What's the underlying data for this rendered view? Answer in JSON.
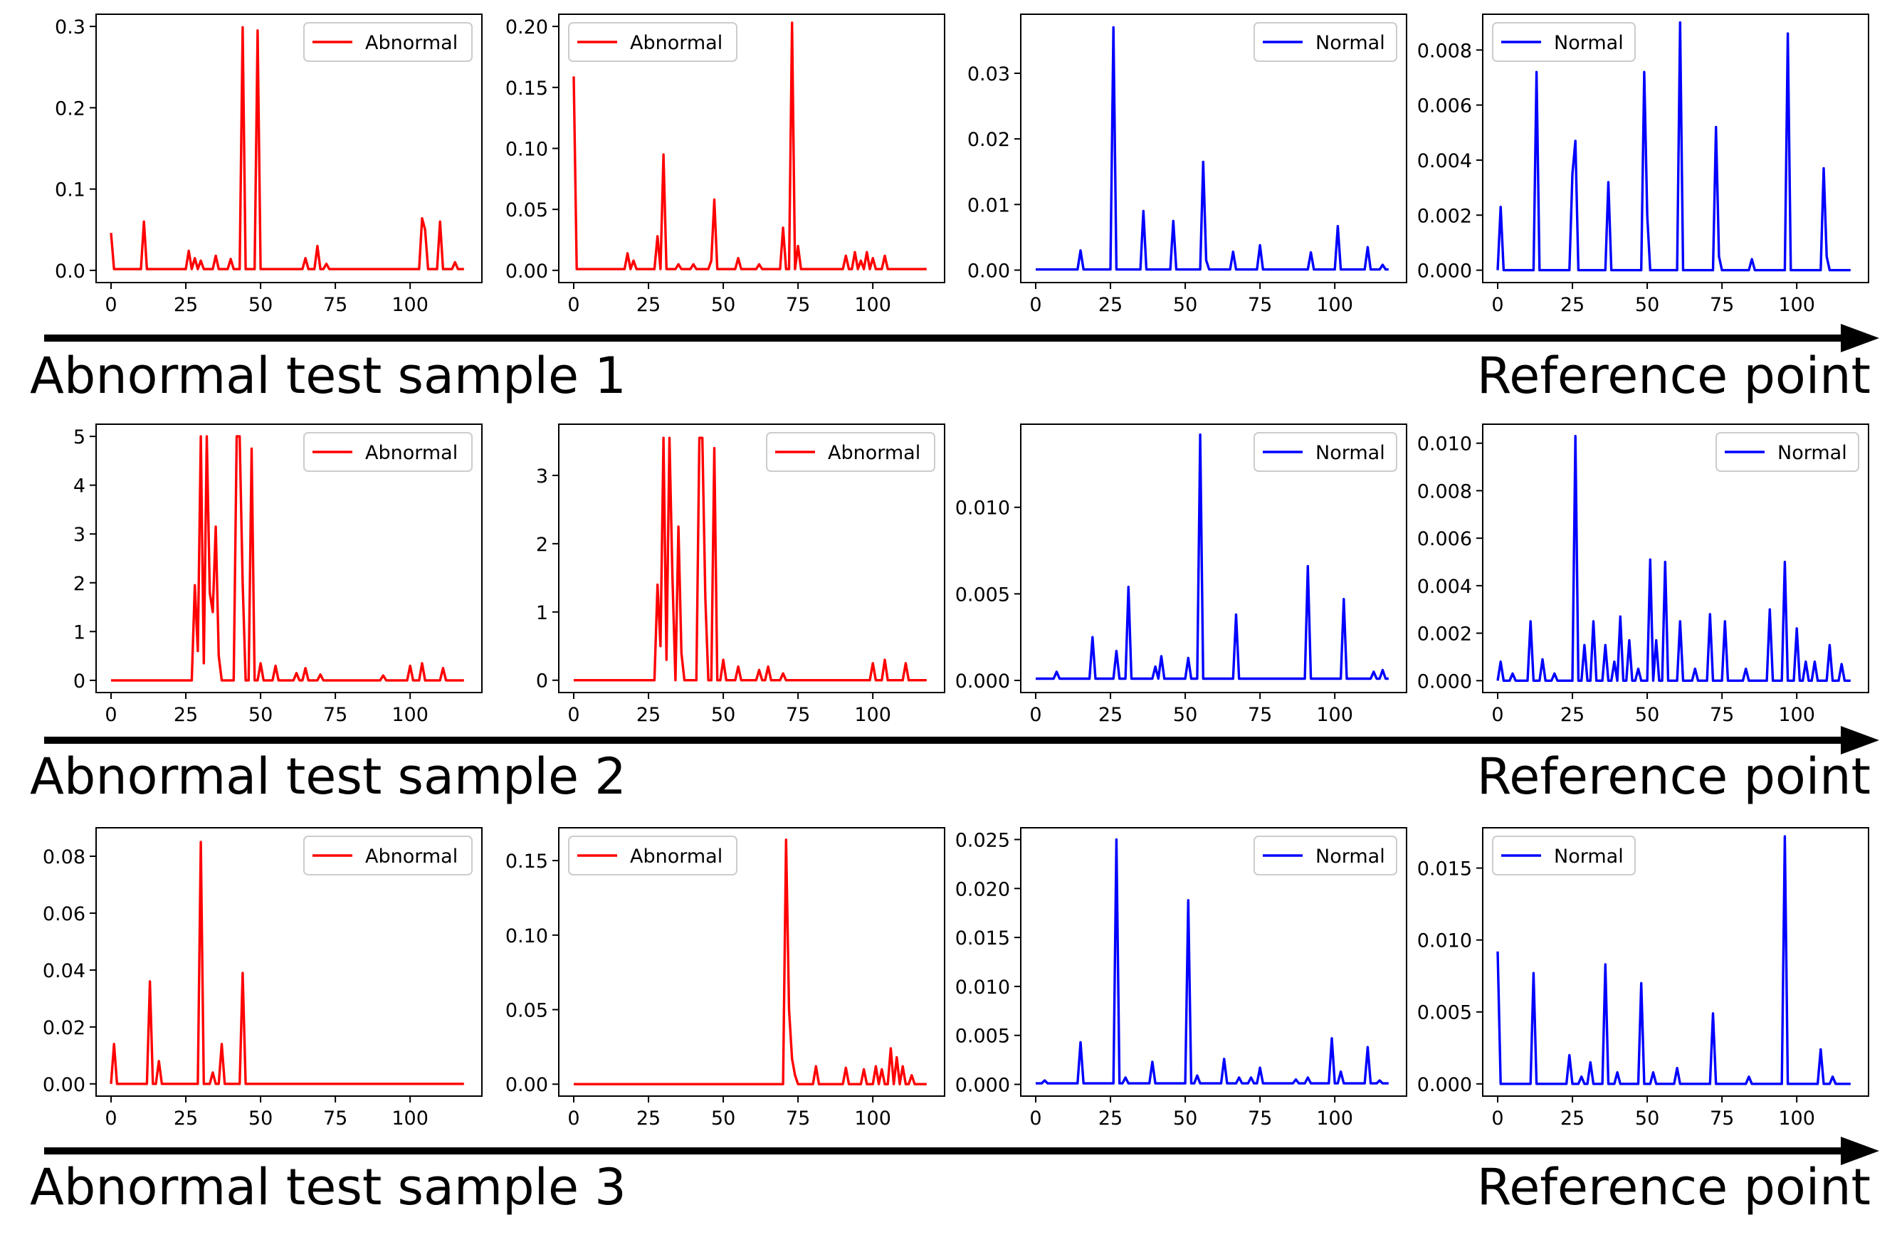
{
  "figure": {
    "rows": [
      {
        "left_label": "Abnormal test sample 1",
        "right_label": "Reference point"
      },
      {
        "left_label": "Abnormal test sample 2",
        "right_label": "Reference point"
      },
      {
        "left_label": "Abnormal test sample 3",
        "right_label": "Reference point"
      }
    ],
    "colors": {
      "abnormal": "#ff0000",
      "normal": "#0000ff",
      "axes": "#000000",
      "arrow": "#000000"
    }
  },
  "chart_data": [
    {
      "type": "line",
      "legend": "Abnormal",
      "color": "#ff0000",
      "xlim": [
        -5,
        124
      ],
      "ylim": [
        -0.015,
        0.315
      ],
      "xticks": [
        0,
        25,
        50,
        75,
        100
      ],
      "yticks": [
        0.0,
        0.1,
        0.2,
        0.3
      ],
      "ytick_labels": [
        "0.0",
        "0.1",
        "0.2",
        "0.3"
      ],
      "legend_loc": "upper right",
      "n_points": 119,
      "baseline": 0.0015,
      "peaks": [
        [
          0,
          0.046
        ],
        [
          11,
          0.06
        ],
        [
          26,
          0.024
        ],
        [
          28,
          0.015
        ],
        [
          30,
          0.012
        ],
        [
          35,
          0.018
        ],
        [
          40,
          0.014
        ],
        [
          44,
          0.299
        ],
        [
          49,
          0.295
        ],
        [
          65,
          0.015
        ],
        [
          69,
          0.03
        ],
        [
          72,
          0.008
        ],
        [
          104,
          0.064
        ],
        [
          105,
          0.05
        ],
        [
          110,
          0.06
        ],
        [
          115,
          0.01
        ]
      ]
    },
    {
      "type": "line",
      "legend": "Abnormal",
      "color": "#ff0000",
      "xlim": [
        -5,
        124
      ],
      "ylim": [
        -0.01,
        0.21
      ],
      "xticks": [
        0,
        25,
        50,
        75,
        100
      ],
      "yticks": [
        0.0,
        0.05,
        0.1,
        0.15,
        0.2
      ],
      "ytick_labels": [
        "0.00",
        "0.05",
        "0.10",
        "0.15",
        "0.20"
      ],
      "legend_loc": "upper left",
      "n_points": 119,
      "baseline": 0.001,
      "peaks": [
        [
          0,
          0.159
        ],
        [
          18,
          0.014
        ],
        [
          20,
          0.008
        ],
        [
          28,
          0.028
        ],
        [
          30,
          0.095
        ],
        [
          35,
          0.005
        ],
        [
          40,
          0.005
        ],
        [
          46,
          0.008
        ],
        [
          47,
          0.058
        ],
        [
          55,
          0.01
        ],
        [
          62,
          0.005
        ],
        [
          70,
          0.035
        ],
        [
          73,
          0.203
        ],
        [
          75,
          0.02
        ],
        [
          91,
          0.012
        ],
        [
          94,
          0.015
        ],
        [
          96,
          0.008
        ],
        [
          98,
          0.015
        ],
        [
          100,
          0.01
        ],
        [
          104,
          0.012
        ]
      ]
    },
    {
      "type": "line",
      "legend": "Normal",
      "color": "#0000ff",
      "xlim": [
        -5,
        124
      ],
      "ylim": [
        -0.0019,
        0.039
      ],
      "xticks": [
        0,
        25,
        50,
        75,
        100
      ],
      "yticks": [
        0.0,
        0.01,
        0.02,
        0.03
      ],
      "ytick_labels": [
        "0.00",
        "0.01",
        "0.02",
        "0.03"
      ],
      "legend_loc": "upper right",
      "n_points": 119,
      "baseline": 0.0001,
      "peaks": [
        [
          15,
          0.003
        ],
        [
          26,
          0.037
        ],
        [
          36,
          0.009
        ],
        [
          46,
          0.0075
        ],
        [
          56,
          0.0165
        ],
        [
          57,
          0.0015
        ],
        [
          66,
          0.0028
        ],
        [
          75,
          0.0038
        ],
        [
          92,
          0.0027
        ],
        [
          101,
          0.0067
        ],
        [
          111,
          0.0035
        ],
        [
          116,
          0.0008
        ]
      ]
    },
    {
      "type": "line",
      "legend": "Normal",
      "color": "#0000ff",
      "xlim": [
        -5,
        124
      ],
      "ylim": [
        -0.00045,
        0.0093
      ],
      "xticks": [
        0,
        25,
        50,
        75,
        100
      ],
      "yticks": [
        0.0,
        0.002,
        0.004,
        0.006,
        0.008
      ],
      "ytick_labels": [
        "0.000",
        "0.002",
        "0.004",
        "0.006",
        "0.008"
      ],
      "legend_loc": "upper left",
      "n_points": 119,
      "baseline": 0.0,
      "peaks": [
        [
          1,
          0.0023
        ],
        [
          13,
          0.0072
        ],
        [
          25,
          0.0035
        ],
        [
          26,
          0.0047
        ],
        [
          37,
          0.0032
        ],
        [
          49,
          0.0072
        ],
        [
          50,
          0.002
        ],
        [
          61,
          0.009
        ],
        [
          73,
          0.0052
        ],
        [
          74,
          0.0005
        ],
        [
          85,
          0.0004
        ],
        [
          97,
          0.0086
        ],
        [
          109,
          0.0037
        ],
        [
          110,
          0.0005
        ]
      ]
    },
    {
      "type": "line",
      "legend": "Abnormal",
      "color": "#ff0000",
      "xlim": [
        -5,
        124
      ],
      "ylim": [
        -0.25,
        5.25
      ],
      "xticks": [
        0,
        25,
        50,
        75,
        100
      ],
      "yticks": [
        0,
        1,
        2,
        3,
        4,
        5
      ],
      "ytick_labels": [
        "0",
        "1",
        "2",
        "3",
        "4",
        "5"
      ],
      "legend_loc": "upper right",
      "n_points": 119,
      "baseline": 0.0,
      "peaks": [
        [
          28,
          1.95
        ],
        [
          29,
          0.6
        ],
        [
          30,
          5.0
        ],
        [
          31,
          0.35
        ],
        [
          32,
          5.0
        ],
        [
          33,
          1.8
        ],
        [
          34,
          1.4
        ],
        [
          35,
          3.15
        ],
        [
          36,
          0.5
        ],
        [
          42,
          5.0
        ],
        [
          43,
          5.0
        ],
        [
          44,
          2.0
        ],
        [
          47,
          4.75
        ],
        [
          50,
          0.35
        ],
        [
          55,
          0.3
        ],
        [
          62,
          0.15
        ],
        [
          65,
          0.25
        ],
        [
          70,
          0.12
        ],
        [
          91,
          0.1
        ],
        [
          100,
          0.3
        ],
        [
          104,
          0.35
        ],
        [
          111,
          0.25
        ]
      ]
    },
    {
      "type": "line",
      "legend": "Abnormal",
      "color": "#ff0000",
      "xlim": [
        -5,
        124
      ],
      "ylim": [
        -0.18,
        3.75
      ],
      "xticks": [
        0,
        25,
        50,
        75,
        100
      ],
      "yticks": [
        0,
        1,
        2,
        3
      ],
      "ytick_labels": [
        "0",
        "1",
        "2",
        "3"
      ],
      "legend_loc": "upper right",
      "n_points": 119,
      "baseline": 0.0,
      "peaks": [
        [
          28,
          1.4
        ],
        [
          29,
          0.5
        ],
        [
          30,
          3.55
        ],
        [
          31,
          0.3
        ],
        [
          32,
          3.55
        ],
        [
          33,
          1.5
        ],
        [
          35,
          2.25
        ],
        [
          36,
          0.4
        ],
        [
          42,
          3.55
        ],
        [
          43,
          3.55
        ],
        [
          44,
          1.2
        ],
        [
          47,
          3.4
        ],
        [
          50,
          0.3
        ],
        [
          55,
          0.2
        ],
        [
          62,
          0.15
        ],
        [
          65,
          0.2
        ],
        [
          70,
          0.1
        ],
        [
          100,
          0.25
        ],
        [
          104,
          0.3
        ],
        [
          111,
          0.25
        ]
      ]
    },
    {
      "type": "line",
      "legend": "Normal",
      "color": "#0000ff",
      "xlim": [
        -5,
        124
      ],
      "ylim": [
        -0.0007,
        0.0148
      ],
      "xticks": [
        0,
        25,
        50,
        75,
        100
      ],
      "yticks": [
        0.0,
        0.005,
        0.01
      ],
      "ytick_labels": [
        "0.000",
        "0.005",
        "0.010"
      ],
      "legend_loc": "upper right",
      "n_points": 119,
      "baseline": 0.0001,
      "peaks": [
        [
          7,
          0.0005
        ],
        [
          19,
          0.0025
        ],
        [
          27,
          0.0017
        ],
        [
          31,
          0.0054
        ],
        [
          40,
          0.0008
        ],
        [
          42,
          0.0014
        ],
        [
          51,
          0.0013
        ],
        [
          55,
          0.0142
        ],
        [
          67,
          0.0038
        ],
        [
          91,
          0.0066
        ],
        [
          103,
          0.0047
        ],
        [
          113,
          0.0005
        ],
        [
          116,
          0.0006
        ]
      ]
    },
    {
      "type": "line",
      "legend": "Normal",
      "color": "#0000ff",
      "xlim": [
        -5,
        124
      ],
      "ylim": [
        -0.0005,
        0.0108
      ],
      "xticks": [
        0,
        25,
        50,
        75,
        100
      ],
      "yticks": [
        0.0,
        0.002,
        0.004,
        0.006,
        0.008,
        0.01
      ],
      "ytick_labels": [
        "0.000",
        "0.002",
        "0.004",
        "0.006",
        "0.008",
        "0.010"
      ],
      "legend_loc": "upper right",
      "n_points": 119,
      "baseline": 0.0,
      "peaks": [
        [
          1,
          0.0008
        ],
        [
          5,
          0.0003
        ],
        [
          11,
          0.0025
        ],
        [
          15,
          0.0009
        ],
        [
          19,
          0.0003
        ],
        [
          26,
          0.0103
        ],
        [
          29,
          0.0015
        ],
        [
          32,
          0.0025
        ],
        [
          36,
          0.0015
        ],
        [
          39,
          0.0008
        ],
        [
          41,
          0.0027
        ],
        [
          44,
          0.0017
        ],
        [
          47,
          0.0005
        ],
        [
          51,
          0.0051
        ],
        [
          53,
          0.0017
        ],
        [
          56,
          0.005
        ],
        [
          61,
          0.0025
        ],
        [
          66,
          0.0005
        ],
        [
          71,
          0.0028
        ],
        [
          76,
          0.0025
        ],
        [
          83,
          0.0005
        ],
        [
          91,
          0.003
        ],
        [
          96,
          0.005
        ],
        [
          100,
          0.0022
        ],
        [
          103,
          0.0008
        ],
        [
          106,
          0.0008
        ],
        [
          111,
          0.0015
        ],
        [
          115,
          0.0007
        ]
      ]
    },
    {
      "type": "line",
      "legend": "Abnormal",
      "color": "#ff0000",
      "xlim": [
        -5,
        124
      ],
      "ylim": [
        -0.0043,
        0.09
      ],
      "xticks": [
        0,
        25,
        50,
        75,
        100
      ],
      "yticks": [
        0.0,
        0.02,
        0.04,
        0.06,
        0.08
      ],
      "ytick_labels": [
        "0.00",
        "0.02",
        "0.04",
        "0.06",
        "0.08"
      ],
      "legend_loc": "upper right",
      "n_points": 119,
      "baseline": 0.0,
      "peaks": [
        [
          1,
          0.014
        ],
        [
          13,
          0.036
        ],
        [
          16,
          0.008
        ],
        [
          30,
          0.085
        ],
        [
          34,
          0.004
        ],
        [
          37,
          0.014
        ],
        [
          44,
          0.039
        ]
      ]
    },
    {
      "type": "line",
      "legend": "Abnormal",
      "color": "#ff0000",
      "xlim": [
        -5,
        124
      ],
      "ylim": [
        -0.008,
        0.172
      ],
      "xticks": [
        0,
        25,
        50,
        75,
        100
      ],
      "yticks": [
        0.0,
        0.05,
        0.1,
        0.15
      ],
      "ytick_labels": [
        "0.00",
        "0.05",
        "0.10",
        "0.15"
      ],
      "legend_loc": "upper left",
      "n_points": 119,
      "baseline": 0.0,
      "peaks": [
        [
          71,
          0.164
        ],
        [
          72,
          0.05
        ],
        [
          73,
          0.017
        ],
        [
          74,
          0.006
        ],
        [
          81,
          0.012
        ],
        [
          91,
          0.011
        ],
        [
          97,
          0.01
        ],
        [
          101,
          0.012
        ],
        [
          103,
          0.01
        ],
        [
          106,
          0.024
        ],
        [
          108,
          0.018
        ],
        [
          110,
          0.012
        ],
        [
          113,
          0.006
        ]
      ]
    },
    {
      "type": "line",
      "legend": "Normal",
      "color": "#0000ff",
      "xlim": [
        -5,
        124
      ],
      "ylim": [
        -0.0012,
        0.0262
      ],
      "xticks": [
        0,
        25,
        50,
        75,
        100
      ],
      "yticks": [
        0.0,
        0.005,
        0.01,
        0.015,
        0.02,
        0.025
      ],
      "ytick_labels": [
        "0.000",
        "0.005",
        "0.010",
        "0.015",
        "0.020",
        "0.025"
      ],
      "legend_loc": "upper right",
      "n_points": 119,
      "baseline": 0.0001,
      "peaks": [
        [
          3,
          0.0004
        ],
        [
          15,
          0.0043
        ],
        [
          27,
          0.025
        ],
        [
          30,
          0.0007
        ],
        [
          39,
          0.0023
        ],
        [
          51,
          0.0188
        ],
        [
          54,
          0.0009
        ],
        [
          63,
          0.0026
        ],
        [
          68,
          0.0007
        ],
        [
          72,
          0.0007
        ],
        [
          75,
          0.0017
        ],
        [
          87,
          0.0005
        ],
        [
          91,
          0.0007
        ],
        [
          99,
          0.0047
        ],
        [
          102,
          0.0013
        ],
        [
          111,
          0.0038
        ],
        [
          115,
          0.0004
        ]
      ]
    },
    {
      "type": "line",
      "legend": "Normal",
      "color": "#0000ff",
      "xlim": [
        -5,
        124
      ],
      "ylim": [
        -0.00085,
        0.0178
      ],
      "xticks": [
        0,
        25,
        50,
        75,
        100
      ],
      "yticks": [
        0.0,
        0.005,
        0.01,
        0.015
      ],
      "ytick_labels": [
        "0.000",
        "0.005",
        "0.010",
        "0.015"
      ],
      "legend_loc": "upper left",
      "n_points": 119,
      "baseline": 0.0,
      "peaks": [
        [
          0,
          0.0092
        ],
        [
          12,
          0.0077
        ],
        [
          24,
          0.002
        ],
        [
          28,
          0.0005
        ],
        [
          31,
          0.0015
        ],
        [
          36,
          0.0083
        ],
        [
          40,
          0.0008
        ],
        [
          48,
          0.007
        ],
        [
          52,
          0.0008
        ],
        [
          60,
          0.0011
        ],
        [
          72,
          0.0049
        ],
        [
          84,
          0.0005
        ],
        [
          96,
          0.0172
        ],
        [
          108,
          0.0024
        ],
        [
          112,
          0.0005
        ]
      ]
    }
  ]
}
